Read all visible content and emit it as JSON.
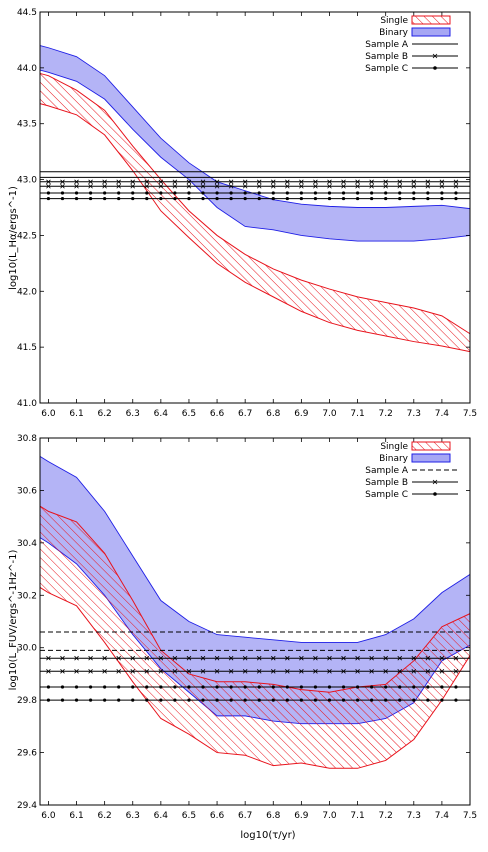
{
  "chart_data": [
    {
      "type": "area",
      "ylabel": "log10(L_Hα/ergs^-1)",
      "xlabel": "",
      "xlim": [
        5.97,
        7.5
      ],
      "ylim": [
        41.0,
        44.5
      ],
      "xticks": [
        "6.0",
        "6.1",
        "6.2",
        "6.3",
        "6.4",
        "6.5",
        "6.6",
        "6.7",
        "6.8",
        "6.9",
        "7.0",
        "7.1",
        "7.2",
        "7.3",
        "7.4",
        "7.5"
      ],
      "yticks": [
        "41.0",
        "41.5",
        "42.0",
        "42.5",
        "43.0",
        "43.5",
        "44.0",
        "44.5"
      ],
      "legend_position": "top-right",
      "legend": [
        {
          "label": "Single",
          "style": "hatch-red"
        },
        {
          "label": "Binary",
          "style": "fill-blue"
        },
        {
          "label": "Sample A",
          "style": "solid"
        },
        {
          "label": "Sample B",
          "style": "cross"
        },
        {
          "label": "Sample C",
          "style": "dot"
        }
      ],
      "bands": [
        {
          "name": "Binary",
          "style": "fill-blue",
          "x": [
            5.97,
            6.0,
            6.1,
            6.2,
            6.3,
            6.4,
            6.5,
            6.6,
            6.7,
            6.8,
            6.9,
            7.0,
            7.1,
            7.2,
            7.3,
            7.4,
            7.5
          ],
          "upper": [
            44.2,
            44.18,
            44.1,
            43.93,
            43.65,
            43.37,
            43.15,
            42.98,
            42.9,
            42.82,
            42.78,
            42.76,
            42.75,
            42.75,
            42.76,
            42.77,
            42.74
          ],
          "lower": [
            43.98,
            43.96,
            43.88,
            43.72,
            43.45,
            43.2,
            43.0,
            42.75,
            42.58,
            42.55,
            42.5,
            42.47,
            42.45,
            42.45,
            42.45,
            42.47,
            42.5
          ]
        },
        {
          "name": "Single",
          "style": "hatch-red",
          "x": [
            5.97,
            6.0,
            6.1,
            6.2,
            6.3,
            6.4,
            6.5,
            6.6,
            6.7,
            6.8,
            6.9,
            7.0,
            7.1,
            7.2,
            7.3,
            7.4,
            7.5
          ],
          "upper": [
            43.95,
            43.93,
            43.8,
            43.62,
            43.3,
            43.0,
            42.72,
            42.5,
            42.33,
            42.2,
            42.1,
            42.02,
            41.95,
            41.9,
            41.85,
            41.78,
            41.62
          ],
          "lower": [
            43.68,
            43.66,
            43.58,
            43.4,
            43.08,
            42.72,
            42.48,
            42.25,
            42.08,
            41.95,
            41.82,
            41.72,
            41.65,
            41.6,
            41.55,
            41.51,
            41.46
          ]
        }
      ],
      "reference_lines": [
        {
          "name": "Sample A",
          "style": "solid",
          "y": [
            43.07,
            43.02
          ]
        },
        {
          "name": "Sample B",
          "style": "cross",
          "y": [
            42.98,
            42.94
          ]
        },
        {
          "name": "Sample C",
          "style": "dot",
          "y": [
            42.88,
            42.83
          ]
        }
      ],
      "marker_x": [
        6.0,
        6.05,
        6.1,
        6.15,
        6.2,
        6.25,
        6.3,
        6.35,
        6.4,
        6.45,
        6.5,
        6.55,
        6.6,
        6.65,
        6.7,
        6.75,
        6.8,
        6.85,
        6.9,
        6.95,
        7.0,
        7.05,
        7.1,
        7.15,
        7.2,
        7.25,
        7.3,
        7.35,
        7.4,
        7.45
      ]
    },
    {
      "type": "area",
      "ylabel": "log10(L_FUV/ergs^-1Hz^-1)",
      "xlabel": "log10(τ/yr)",
      "xlim": [
        5.97,
        7.5
      ],
      "ylim": [
        29.4,
        30.8
      ],
      "xticks": [
        "6.0",
        "6.1",
        "6.2",
        "6.3",
        "6.4",
        "6.5",
        "6.6",
        "6.7",
        "6.8",
        "6.9",
        "7.0",
        "7.1",
        "7.2",
        "7.3",
        "7.4",
        "7.5"
      ],
      "yticks": [
        "29.4",
        "29.6",
        "29.8",
        "30.0",
        "30.2",
        "30.4",
        "30.6",
        "30.8"
      ],
      "legend_position": "top-right",
      "legend": [
        {
          "label": "Single",
          "style": "hatch-red"
        },
        {
          "label": "Binary",
          "style": "fill-blue"
        },
        {
          "label": "Sample A",
          "style": "dashed"
        },
        {
          "label": "Sample B",
          "style": "cross"
        },
        {
          "label": "Sample C",
          "style": "dot"
        }
      ],
      "bands": [
        {
          "name": "Binary",
          "style": "fill-blue",
          "x": [
            5.97,
            6.0,
            6.1,
            6.2,
            6.3,
            6.4,
            6.5,
            6.6,
            6.7,
            6.8,
            6.9,
            7.0,
            7.1,
            7.2,
            7.3,
            7.4,
            7.5
          ],
          "upper": [
            30.73,
            30.71,
            30.65,
            30.52,
            30.35,
            30.18,
            30.1,
            30.05,
            30.04,
            30.03,
            30.02,
            30.02,
            30.02,
            30.05,
            30.11,
            30.21,
            30.28
          ],
          "lower": [
            30.42,
            30.4,
            30.32,
            30.2,
            30.05,
            29.92,
            29.83,
            29.74,
            29.74,
            29.72,
            29.71,
            29.71,
            29.71,
            29.73,
            29.79,
            29.95,
            30.01
          ]
        },
        {
          "name": "Single",
          "style": "hatch-red",
          "x": [
            5.97,
            6.0,
            6.1,
            6.2,
            6.3,
            6.4,
            6.5,
            6.6,
            6.7,
            6.8,
            6.9,
            7.0,
            7.1,
            7.2,
            7.3,
            7.4,
            7.5
          ],
          "upper": [
            30.54,
            30.52,
            30.48,
            30.36,
            30.18,
            29.99,
            29.9,
            29.87,
            29.87,
            29.86,
            29.84,
            29.83,
            29.85,
            29.86,
            29.95,
            30.08,
            30.13
          ],
          "lower": [
            30.23,
            30.21,
            30.16,
            30.02,
            29.87,
            29.73,
            29.67,
            29.6,
            29.59,
            29.55,
            29.56,
            29.54,
            29.54,
            29.57,
            29.65,
            29.8,
            29.97
          ]
        }
      ],
      "reference_lines": [
        {
          "name": "Sample A",
          "style": "dashed",
          "y": [
            30.06,
            29.99
          ]
        },
        {
          "name": "Sample B",
          "style": "cross",
          "y": [
            29.96,
            29.91
          ]
        },
        {
          "name": "Sample C",
          "style": "dot",
          "y": [
            29.85,
            29.8
          ]
        }
      ],
      "marker_x": [
        6.0,
        6.05,
        6.1,
        6.15,
        6.2,
        6.25,
        6.3,
        6.35,
        6.4,
        6.45,
        6.5,
        6.55,
        6.6,
        6.65,
        6.7,
        6.75,
        6.8,
        6.85,
        6.9,
        6.95,
        7.0,
        7.05,
        7.1,
        7.15,
        7.2,
        7.25,
        7.3,
        7.35,
        7.4,
        7.45
      ]
    }
  ],
  "colors": {
    "single": "#e8131c",
    "binary_fill": "#a7a7f4",
    "binary_edge": "#1f1fe6",
    "line": "#000000"
  }
}
